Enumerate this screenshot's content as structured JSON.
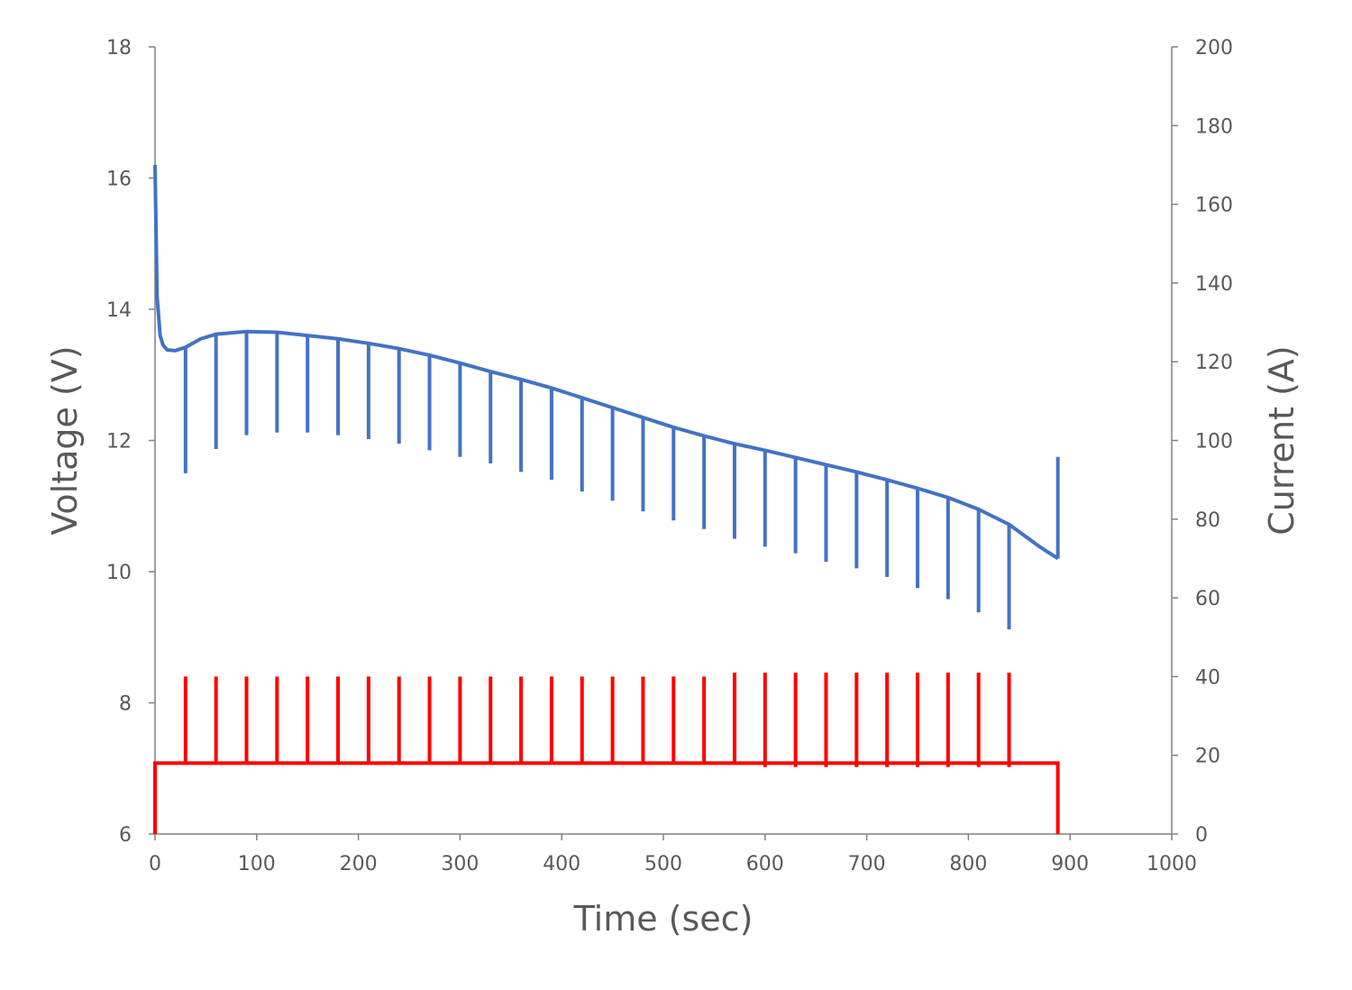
{
  "chart_data": {
    "type": "line",
    "title": "",
    "xlabel": "Time (sec)",
    "ylabel": "Voltage (V)",
    "y2label": "Current (A)",
    "xlim": [
      0,
      1000
    ],
    "ylim": [
      6,
      18
    ],
    "y2lim": [
      0,
      200
    ],
    "x_ticks": [
      "0",
      "100",
      "200",
      "300",
      "400",
      "500",
      "600",
      "700",
      "800",
      "900",
      "1000"
    ],
    "y_ticks": [
      "6",
      "8",
      "10",
      "12",
      "14",
      "16",
      "18"
    ],
    "y2_ticks": [
      "0",
      "20",
      "40",
      "60",
      "80",
      "100",
      "120",
      "140",
      "160",
      "180",
      "200"
    ],
    "grid": false,
    "legend": "none",
    "colors": {
      "voltage": "#4472C4",
      "current": "#FF0000",
      "axis": "#808080",
      "text": "#595959"
    },
    "series": [
      {
        "axis": "left",
        "unit": "V",
        "baseline": {
          "x": [
            0,
            2,
            5,
            8,
            12,
            20,
            30,
            45,
            60,
            90,
            120,
            150,
            180,
            210,
            240,
            270,
            300,
            330,
            360,
            390,
            420,
            450,
            480,
            510,
            540,
            570,
            600,
            630,
            660,
            690,
            720,
            750,
            780,
            810,
            840,
            870,
            888
          ],
          "y": [
            16.2,
            14.2,
            13.6,
            13.45,
            13.38,
            13.37,
            13.42,
            13.55,
            13.62,
            13.66,
            13.65,
            13.6,
            13.55,
            13.48,
            13.4,
            13.3,
            13.18,
            13.05,
            12.93,
            12.8,
            12.65,
            12.5,
            12.35,
            12.2,
            12.07,
            11.95,
            11.85,
            11.74,
            11.63,
            11.52,
            11.4,
            11.27,
            11.13,
            10.95,
            10.72,
            10.38,
            10.2
          ]
        },
        "pulses_x": [
          30,
          60,
          90,
          120,
          150,
          180,
          210,
          240,
          270,
          300,
          330,
          360,
          390,
          420,
          450,
          480,
          510,
          540,
          570,
          600,
          630,
          660,
          690,
          720,
          750,
          780,
          810,
          840
        ],
        "pulses_y": [
          11.5,
          11.87,
          12.08,
          12.12,
          12.12,
          12.08,
          12.02,
          11.95,
          11.85,
          11.75,
          11.65,
          11.52,
          11.4,
          11.22,
          11.08,
          10.92,
          10.78,
          10.65,
          10.5,
          10.38,
          10.28,
          10.15,
          10.05,
          9.92,
          9.75,
          9.58,
          9.38,
          9.12
        ],
        "end_x": 888,
        "end_y": 11.75
      },
      {
        "axis": "right",
        "unit": "A",
        "baseline_level": 18,
        "start_x": 0,
        "end_x": 888,
        "pulses_x": [
          30,
          60,
          90,
          120,
          150,
          180,
          210,
          240,
          270,
          300,
          330,
          360,
          390,
          420,
          450,
          480,
          510,
          540,
          570,
          600,
          630,
          660,
          690,
          720,
          750,
          780,
          810,
          840
        ],
        "pulses_y": [
          40,
          40,
          40,
          40,
          40,
          40,
          40,
          40,
          40,
          40,
          40,
          40,
          40,
          40,
          40,
          40,
          40,
          40,
          41,
          41,
          41,
          41,
          41,
          41,
          41,
          41,
          41,
          41
        ],
        "dips_y": [
          18,
          18,
          18,
          18,
          18,
          18,
          18,
          18,
          18,
          18,
          18,
          18,
          18,
          18,
          18,
          18,
          18,
          18,
          18,
          17,
          17,
          17,
          17,
          17,
          17,
          17,
          17,
          17
        ]
      }
    ]
  }
}
